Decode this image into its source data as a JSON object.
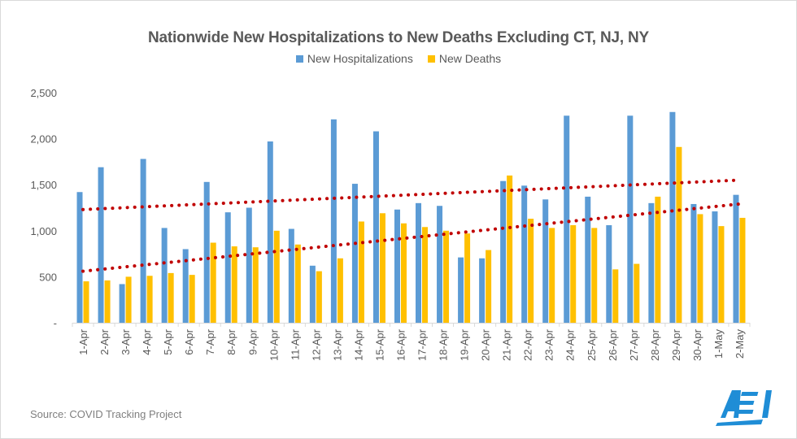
{
  "chart_data": {
    "type": "bar",
    "title": "Nationwide New Hospitalizations to New Deaths Excluding  CT, NJ, NY",
    "xlabel": "",
    "ylabel": "",
    "ylim": [
      0,
      2500
    ],
    "yticks": [
      0,
      500,
      1000,
      1500,
      2000,
      2500
    ],
    "ytick_labels": [
      "-",
      "500",
      "1,000",
      "1,500",
      "2,000",
      "2,500"
    ],
    "grid": false,
    "legend_position": "top-center",
    "categories": [
      "1-Apr",
      "2-Apr",
      "3-Apr",
      "4-Apr",
      "5-Apr",
      "6-Apr",
      "7-Apr",
      "8-Apr",
      "9-Apr",
      "10-Apr",
      "11-Apr",
      "12-Apr",
      "13-Apr",
      "14-Apr",
      "15-Apr",
      "16-Apr",
      "17-Apr",
      "18-Apr",
      "19-Apr",
      "20-Apr",
      "21-Apr",
      "22-Apr",
      "23-Apr",
      "24-Apr",
      "25-Apr",
      "26-Apr",
      "27-Apr",
      "28-Apr",
      "29-Apr",
      "30-Apr",
      "1-May",
      "2-May"
    ],
    "series": [
      {
        "name": "New Hospitalizations",
        "color": "#5b9bd5",
        "values": [
          1420,
          1690,
          420,
          1780,
          1030,
          800,
          1530,
          1200,
          1250,
          1970,
          1020,
          620,
          2210,
          1510,
          2080,
          1230,
          1300,
          1270,
          710,
          700,
          1540,
          1490,
          1340,
          2250,
          1370,
          1060,
          2250,
          1300,
          2290,
          1290,
          1210,
          1390
        ]
      },
      {
        "name": "New Deaths",
        "color": "#ffc000",
        "values": [
          450,
          460,
          500,
          510,
          540,
          520,
          870,
          830,
          820,
          1000,
          850,
          560,
          700,
          1100,
          1190,
          1080,
          1040,
          1000,
          970,
          790,
          1600,
          1130,
          1030,
          1060,
          1030,
          580,
          640,
          1370,
          1910,
          1180,
          1050,
          1140
        ]
      }
    ],
    "trendlines": [
      {
        "series": "New Hospitalizations",
        "type": "linear",
        "style": "dotted",
        "color": "#c00000",
        "start": 1230,
        "end": 1550
      },
      {
        "series": "New Deaths",
        "type": "linear",
        "style": "dotted",
        "color": "#c00000",
        "start": 560,
        "end": 1290
      }
    ]
  },
  "source": "Source: COVID Tracking Project",
  "logo": {
    "text": "AEI",
    "color": "#1f8dd6"
  }
}
